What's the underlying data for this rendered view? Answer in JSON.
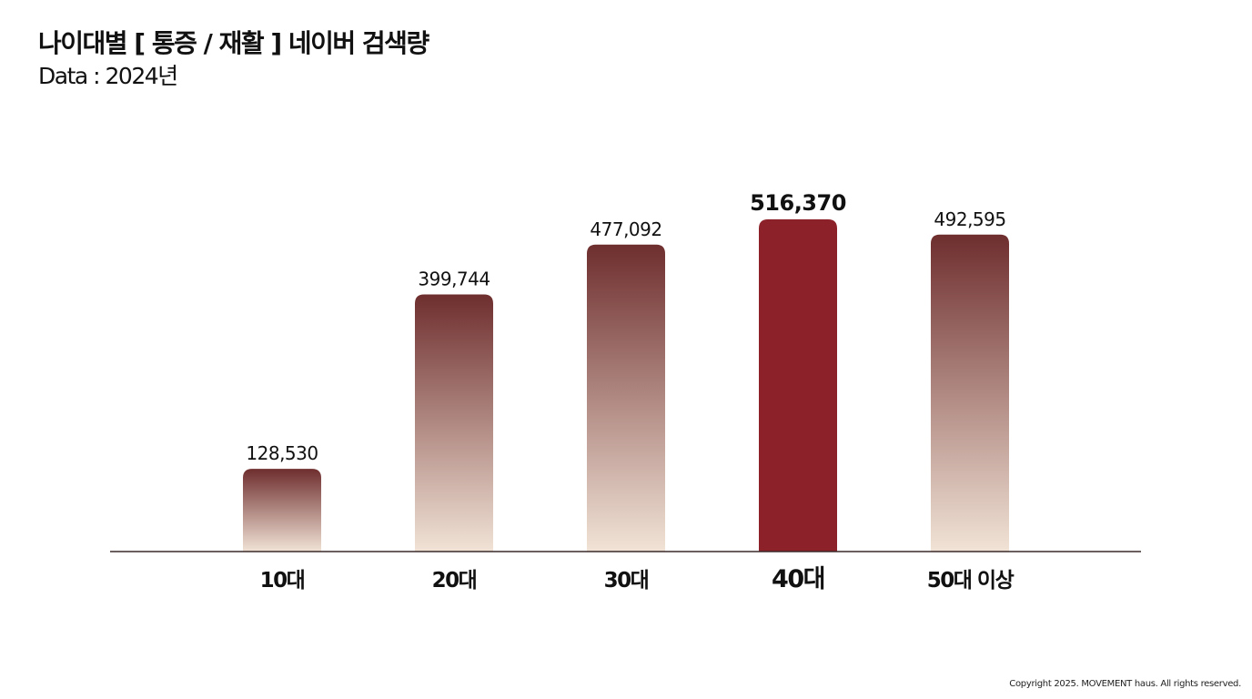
{
  "chart_data": {
    "type": "bar",
    "title": "나이대별 [ 통증 / 재활 ]  네이버 검색량",
    "subtitle": "Data : 2024년",
    "categories": [
      "10대",
      "20대",
      "30대",
      "40대",
      "50대 이상"
    ],
    "values": [
      128530,
      399744,
      477092,
      516370,
      492595
    ],
    "value_labels": [
      "128,530",
      "399,744",
      "477,092",
      "516,370",
      "492,595"
    ],
    "highlight_index": 3,
    "xlabel": "",
    "ylabel": "",
    "ylim": [
      0,
      516370
    ],
    "grid": false,
    "colors": {
      "gradient_top": "#6e2e2e",
      "gradient_bottom": "#f1e3d6",
      "highlight": "#8c2129",
      "axis": "#3a2a2a"
    }
  },
  "footer": {
    "copyright": "Copyright 2025. MOVEMENT haus. All rights reserved."
  }
}
